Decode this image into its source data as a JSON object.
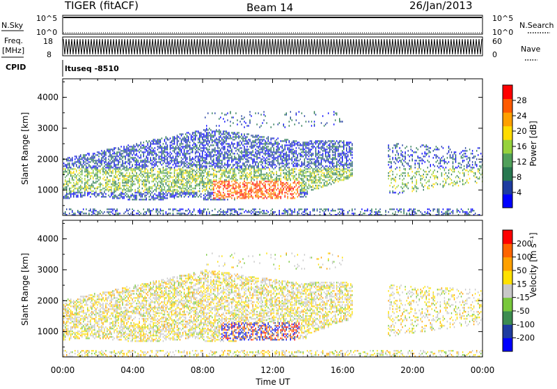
{
  "header": {
    "title": "TIGER (fitACF)",
    "beam": "Beam 14",
    "date": "26/Jan/2013"
  },
  "strip": {
    "nsky_label": "N.Sky",
    "nsky_ticks": [
      "10^5",
      "10^0"
    ],
    "nsky_right_ticks": [
      "10^5",
      "10^0"
    ],
    "nsearch_label": "N.Search",
    "freq_label": "Freq.",
    "freq_unit": "[MHz]",
    "freq_ticks": [
      "18",
      "8"
    ],
    "nave_ticks": [
      "60",
      "0"
    ],
    "nave_label": "Nave",
    "cpid_label": "CPID",
    "cpid_value": "ltuseq -8510"
  },
  "colors": {
    "power_scale": [
      "#0000ff",
      "#1e3ca0",
      "#287850",
      "#50a05a",
      "#96d23c",
      "#ffdc00",
      "#ffa000",
      "#ff5a00",
      "#ff0000"
    ],
    "velocity_scale": [
      "#0000ff",
      "#1e3ca0",
      "#3c8c50",
      "#78c83c",
      "#c8c8c8",
      "#ffe100",
      "#ffa000",
      "#ff6400",
      "#ff0000"
    ]
  },
  "chart_data": [
    {
      "type": "heatmap",
      "ylabel": "Slant Range [km]",
      "yticks": [
        "1000",
        "2000",
        "3000",
        "4000"
      ],
      "ylim": [
        180,
        4600
      ],
      "xlim_hours": [
        0,
        24
      ],
      "colorbar": {
        "label": "Power [dB]",
        "ticks": [
          "4",
          "8",
          "12",
          "16",
          "20",
          "24",
          "28"
        ],
        "range": [
          0,
          32
        ]
      }
    },
    {
      "type": "heatmap",
      "ylabel": "Slant Range [km]",
      "yticks": [
        "1000",
        "2000",
        "3000",
        "4000"
      ],
      "ylim": [
        180,
        4600
      ],
      "xlabel": "Time UT",
      "xticks": [
        "00:00",
        "04:00",
        "08:00",
        "12:00",
        "16:00",
        "20:00",
        "00:00"
      ],
      "xlim_hours": [
        0,
        24
      ],
      "colorbar": {
        "label": "Velocity [m s⁻¹]",
        "ticks": [
          "200",
          "100",
          "50",
          "15",
          "-15",
          "-50",
          "-100",
          "-200"
        ],
        "range": [
          -250,
          250
        ]
      }
    }
  ]
}
